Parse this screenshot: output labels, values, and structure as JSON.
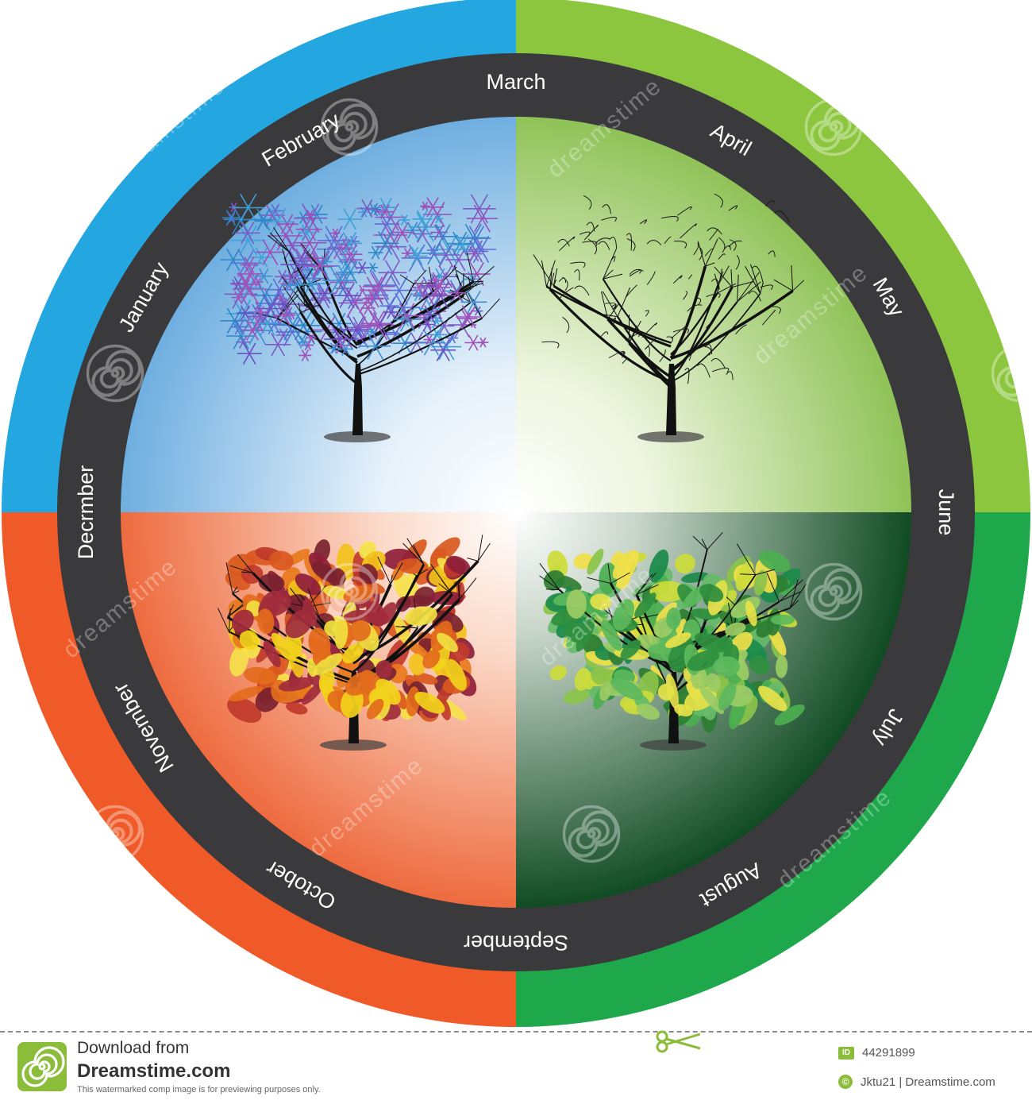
{
  "diagram": {
    "months": [
      "January",
      "February",
      "March",
      "April",
      "May",
      "June",
      "July",
      "August",
      "September",
      "October",
      "November",
      "Decrmber"
    ],
    "seasons": [
      {
        "name": "winter",
        "ring_color": "#24a6e0",
        "bg_color": "#7fb9e5"
      },
      {
        "name": "spring",
        "ring_color": "#8cc63f",
        "bg_color": "#9fcb6a"
      },
      {
        "name": "summer",
        "ring_color": "#1ea84b",
        "bg_color": "#1f5a2e"
      },
      {
        "name": "autumn",
        "ring_color": "#f05a28",
        "bg_color": "#ef6e45"
      }
    ],
    "track_color": "#3a3a3c"
  },
  "watermark": {
    "text": "dreamstime"
  },
  "footer": {
    "line1": "Download from",
    "line2": "Dreamstime.com",
    "note": "This watermarked comp image is for previewing purposes only.",
    "id_label": "ID",
    "id_value": "44291899",
    "credit_label": "©",
    "credit_value": "Jktu21 | Dreamstime.com"
  }
}
